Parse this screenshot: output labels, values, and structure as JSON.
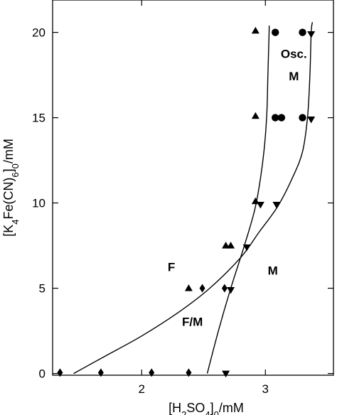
{
  "chart_data": {
    "type": "scatter",
    "xlim": [
      1.28,
      3.55
    ],
    "ylim": [
      -0.1,
      21.9
    ],
    "x_ticks": [
      2,
      3
    ],
    "y_ticks": [
      0,
      5,
      10,
      15,
      20
    ],
    "x_tick_labels": [
      "2",
      "3"
    ],
    "y_tick_labels": [
      "0",
      "5",
      "10",
      "15",
      "20"
    ],
    "xlabel": {
      "pre": "[H",
      "sub1": "2",
      "mid": "SO",
      "sub2": "4",
      "post": "]",
      "sub3": "0",
      "tail": "/mM"
    },
    "ylabel": {
      "pre": "[K",
      "sub1": "4",
      "mid": "Fe(CN)",
      "sub2": "6",
      "post": "]",
      "sub3": "0",
      "tail": "/mM"
    },
    "grid": false,
    "region_labels": [
      {
        "text": "Osc.",
        "x": 3.23,
        "y": 18.5
      },
      {
        "text": "M",
        "x": 3.23,
        "y": 17.2
      },
      {
        "text": "F",
        "x": 2.24,
        "y": 6.0
      },
      {
        "text": "M",
        "x": 3.06,
        "y": 5.8
      },
      {
        "text": "F/M",
        "x": 2.41,
        "y": 2.8
      }
    ],
    "series": [
      {
        "marker": "triangle-up",
        "points": [
          [
            2.92,
            20.1
          ],
          [
            2.92,
            15.1
          ],
          [
            2.92,
            10.1
          ],
          [
            2.68,
            7.5
          ],
          [
            2.72,
            7.5
          ],
          [
            2.38,
            5.0
          ]
        ]
      },
      {
        "marker": "circle",
        "points": [
          [
            3.08,
            20.0
          ],
          [
            3.3,
            20.0
          ],
          [
            3.08,
            15.0
          ],
          [
            3.13,
            15.0
          ],
          [
            3.3,
            15.0
          ]
        ]
      },
      {
        "marker": "triangle-down",
        "points": [
          [
            3.37,
            19.9
          ],
          [
            3.37,
            14.9
          ],
          [
            2.96,
            9.9
          ],
          [
            3.09,
            9.9
          ],
          [
            2.85,
            7.4
          ],
          [
            2.72,
            4.9
          ],
          [
            2.68,
            0.0
          ]
        ]
      },
      {
        "marker": "diamond",
        "points": [
          [
            1.34,
            0.05
          ],
          [
            1.67,
            0.05
          ],
          [
            2.08,
            0.05
          ],
          [
            2.38,
            0.05
          ],
          [
            2.49,
            5.0
          ],
          [
            2.67,
            5.0
          ]
        ]
      }
    ],
    "curves": [
      {
        "points": [
          [
            1.45,
            0.0
          ],
          [
            1.7,
            1.0
          ],
          [
            2.0,
            2.2
          ],
          [
            2.3,
            3.6
          ],
          [
            2.55,
            5.0
          ],
          [
            2.8,
            6.8
          ],
          [
            2.95,
            8.3
          ],
          [
            3.1,
            9.8
          ],
          [
            3.22,
            11.5
          ],
          [
            3.3,
            13.0
          ],
          [
            3.34,
            15.0
          ],
          [
            3.36,
            17.5
          ],
          [
            3.37,
            20.0
          ],
          [
            3.38,
            20.6
          ]
        ]
      },
      {
        "points": [
          [
            2.53,
            0.0
          ],
          [
            2.62,
            2.5
          ],
          [
            2.72,
            5.0
          ],
          [
            2.83,
            7.5
          ],
          [
            2.92,
            9.8
          ],
          [
            2.98,
            12.5
          ],
          [
            3.01,
            15.0
          ],
          [
            3.02,
            17.5
          ],
          [
            3.03,
            20.0
          ],
          [
            3.03,
            20.4
          ]
        ]
      }
    ]
  }
}
